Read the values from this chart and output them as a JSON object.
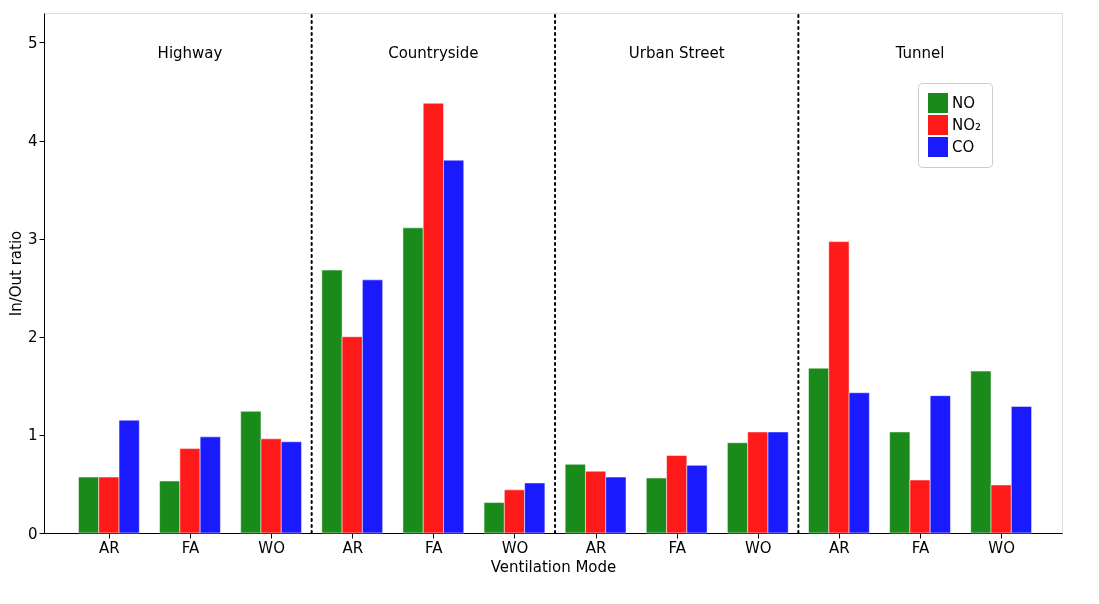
{
  "chart_data": {
    "type": "bar",
    "xlabel": "Ventilation Mode",
    "ylabel": "In/Out ratio",
    "categories": [
      "AR",
      "FA",
      "WO",
      "AR",
      "FA",
      "WO",
      "AR",
      "FA",
      "WO",
      "AR",
      "FA",
      "WO"
    ],
    "series": [
      {
        "name": "NO",
        "color": "#1a8a1a",
        "values": [
          0.57,
          0.53,
          1.24,
          2.68,
          3.11,
          0.31,
          0.7,
          0.56,
          0.92,
          1.68,
          1.03,
          1.65
        ]
      },
      {
        "name": "NO₂",
        "color": "#ff1a1a",
        "values": [
          0.57,
          0.86,
          0.96,
          2.0,
          4.38,
          0.44,
          0.63,
          0.79,
          1.03,
          2.97,
          0.54,
          0.49
        ]
      },
      {
        "name": "CO",
        "color": "#1a1aff",
        "values": [
          1.15,
          0.98,
          0.93,
          2.58,
          3.8,
          0.51,
          0.57,
          0.69,
          1.03,
          1.43,
          1.4,
          1.29
        ]
      }
    ],
    "annotations": [
      "Highway",
      "Countryside",
      "Urban Street",
      "Tunnel"
    ],
    "ylim": [
      0,
      5.3
    ],
    "yticks": [
      0,
      1,
      2,
      3,
      4,
      5
    ],
    "grid": false,
    "legend": "top right"
  }
}
